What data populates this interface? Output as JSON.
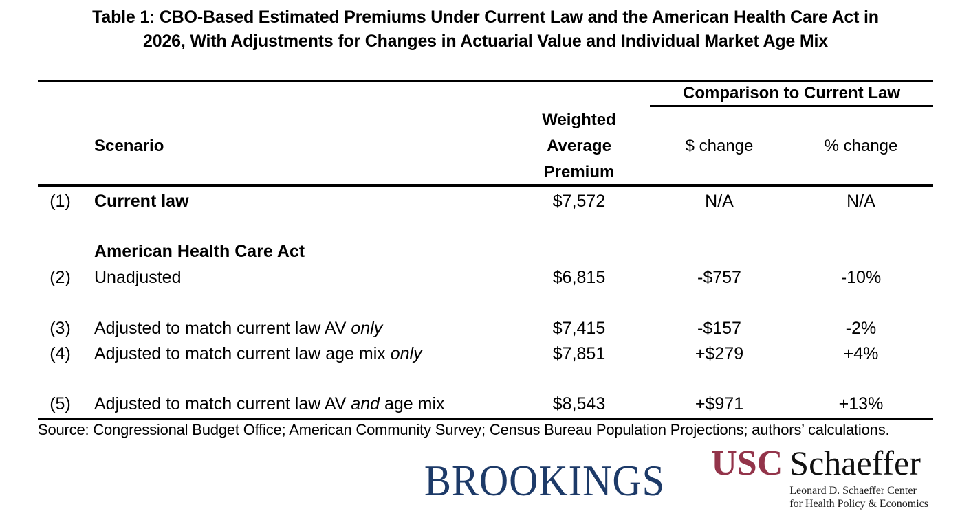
{
  "title": {
    "line1": "Table 1: CBO-Based Estimated Premiums Under Current Law and the American Health Care Act in",
    "line2": "2026, With Adjustments for Changes in Actuarial Value and Individual Market Age Mix"
  },
  "table": {
    "headers": {
      "scenario": "Scenario",
      "premium": "Weighted Average Premium",
      "comparison_group": "Comparison to Current Law",
      "dollar_change": "$ change",
      "pct_change": "% change"
    },
    "section_header": "American Health Care Act",
    "rows": [
      {
        "num": "(1)",
        "label_pre": "Current law",
        "label_italic": "",
        "label_post": "",
        "premium": "$7,572",
        "dollar": "N/A",
        "pct": "N/A"
      },
      {
        "num": "(2)",
        "label_pre": "Unadjusted",
        "label_italic": "",
        "label_post": "",
        "premium": "$6,815",
        "dollar": "-$757",
        "pct": "-10%"
      },
      {
        "num": "(3)",
        "label_pre": "Adjusted to match current law AV ",
        "label_italic": "only",
        "label_post": "",
        "premium": "$7,415",
        "dollar": "-$157",
        "pct": "-2%"
      },
      {
        "num": "(4)",
        "label_pre": "Adjusted to match current law age mix ",
        "label_italic": "only",
        "label_post": "",
        "premium": "$7,851",
        "dollar": "+$279",
        "pct": "+4%"
      },
      {
        "num": "(5)",
        "label_pre": "Adjusted to match current law AV ",
        "label_italic": "and",
        "label_post": " age mix",
        "premium": "$8,543",
        "dollar": "+$971",
        "pct": "+13%"
      }
    ]
  },
  "source": "Source: Congressional Budget Office; American Community Survey; Census Bureau Population Projections; authors’ calculations.",
  "footer": {
    "brookings_wordmark": "BROOKINGS",
    "usc_mark": "USC",
    "usc_schaeffer": "Schaeffer",
    "usc_sub_line1": "Leonard D. Schaeffer Center",
    "usc_sub_line2": "for Health Policy & Economics",
    "colors": {
      "brookings_navy": "#1d3a68",
      "usc_cardinal": "#93344a"
    }
  }
}
